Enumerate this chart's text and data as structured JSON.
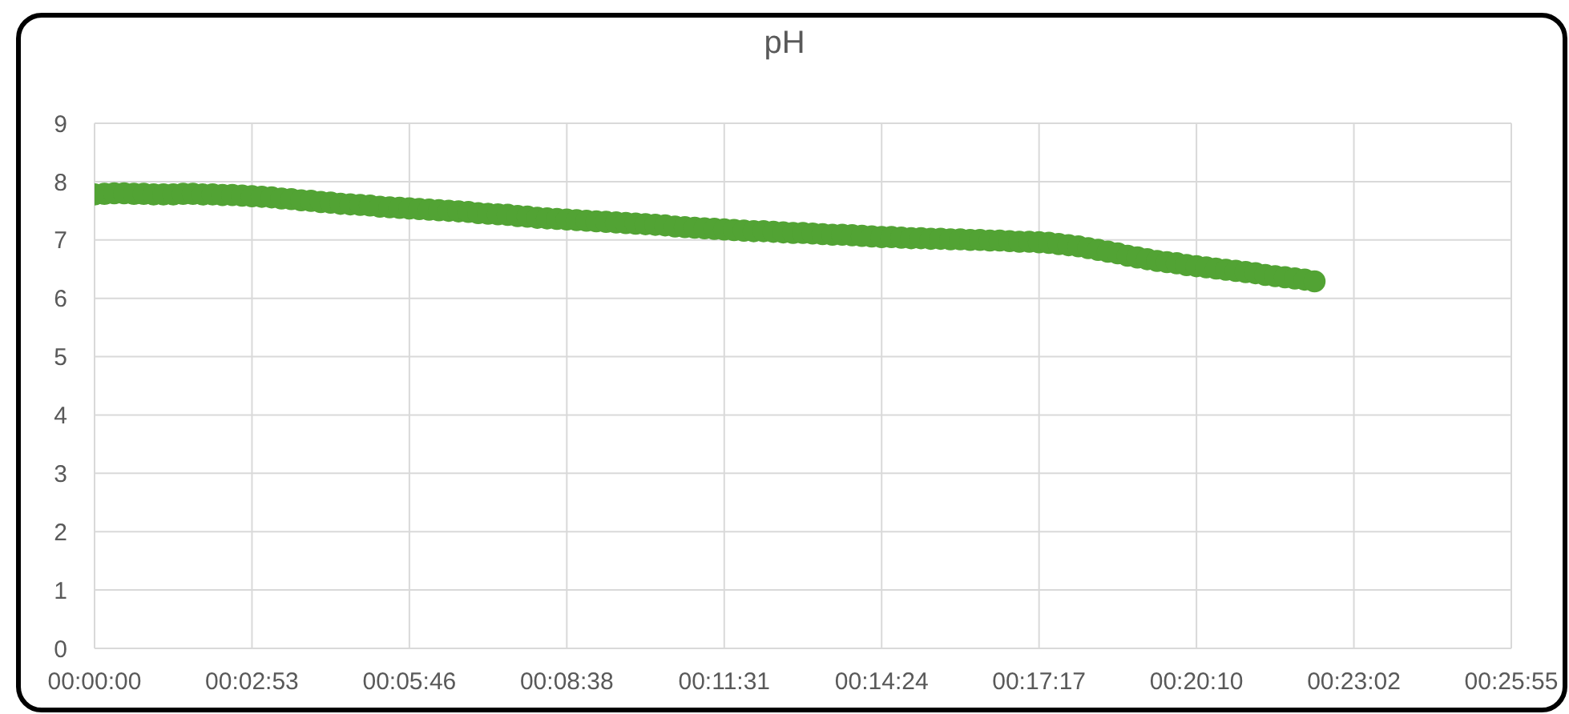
{
  "chart_data": {
    "type": "scatter",
    "title": "pH",
    "x": [
      0,
      0.003,
      0.006,
      0.009,
      0.012,
      0.015,
      0.018,
      0.021,
      0.024,
      0.027,
      0.03,
      0.033,
      0.036,
      0.039,
      0.042,
      0.045,
      0.048,
      0.051,
      0.054,
      0.057,
      0.06,
      0.063,
      0.066,
      0.069,
      0.072,
      0.075,
      0.078,
      0.081,
      0.084,
      0.087,
      0.09,
      0.093,
      0.096,
      0.099,
      0.102,
      0.105,
      0.108,
      0.111,
      0.114,
      0.117,
      0.12,
      0.123,
      0.126,
      0.129,
      0.132,
      0.135,
      0.138,
      0.141,
      0.144,
      0.147,
      0.15,
      0.153,
      0.156,
      0.159,
      0.162,
      0.165,
      0.168,
      0.171,
      0.174,
      0.177,
      0.18,
      0.183,
      0.186,
      0.189,
      0.192,
      0.195,
      0.198,
      0.201,
      0.204,
      0.207,
      0.21,
      0.213,
      0.216,
      0.219,
      0.222,
      0.225,
      0.228,
      0.231,
      0.234,
      0.237,
      0.24,
      0.243,
      0.246,
      0.249,
      0.252,
      0.255,
      0.258,
      0.261,
      0.264,
      0.267,
      0.27,
      0.273,
      0.276,
      0.279,
      0.282,
      0.285,
      0.288,
      0.291,
      0.294,
      0.297,
      0.3,
      0.303,
      0.306,
      0.309,
      0.312,
      0.315,
      0.318,
      0.321,
      0.324,
      0.327,
      0.33,
      0.333,
      0.336,
      0.339,
      0.342,
      0.345,
      0.348,
      0.351,
      0.354,
      0.357,
      0.36,
      0.363,
      0.366,
      0.369,
      0.372
    ],
    "values": [
      7.78,
      7.79,
      7.8,
      7.8,
      7.79,
      7.79,
      7.78,
      7.78,
      7.78,
      7.79,
      7.79,
      7.78,
      7.78,
      7.77,
      7.77,
      7.76,
      7.75,
      7.74,
      7.73,
      7.71,
      7.7,
      7.68,
      7.67,
      7.65,
      7.64,
      7.62,
      7.61,
      7.6,
      7.59,
      7.57,
      7.56,
      7.55,
      7.54,
      7.53,
      7.52,
      7.51,
      7.5,
      7.49,
      7.48,
      7.46,
      7.45,
      7.44,
      7.43,
      7.41,
      7.4,
      7.38,
      7.37,
      7.36,
      7.35,
      7.34,
      7.33,
      7.32,
      7.31,
      7.3,
      7.29,
      7.28,
      7.27,
      7.26,
      7.25,
      7.23,
      7.22,
      7.21,
      7.2,
      7.19,
      7.18,
      7.17,
      7.16,
      7.15,
      7.15,
      7.14,
      7.13,
      7.12,
      7.12,
      7.11,
      7.1,
      7.09,
      7.09,
      7.08,
      7.07,
      7.06,
      7.05,
      7.05,
      7.04,
      7.03,
      7.03,
      7.02,
      7.02,
      7.01,
      7.01,
      7,
      7,
      6.99,
      6.99,
      6.98,
      6.97,
      6.97,
      6.96,
      6.95,
      6.93,
      6.91,
      6.89,
      6.86,
      6.83,
      6.8,
      6.77,
      6.73,
      6.7,
      6.67,
      6.64,
      6.62,
      6.6,
      6.57,
      6.55,
      6.53,
      6.51,
      6.49,
      6.47,
      6.45,
      6.43,
      6.4,
      6.38,
      6.36,
      6.34,
      6.32,
      6.29
    ],
    "color": "#52a334",
    "marker": "circle",
    "grid": true,
    "xlim": [
      0,
      0.432
    ],
    "xticks": [
      {
        "value": 0,
        "label": "00:00:00"
      },
      {
        "value": 0.048,
        "label": "00:02:53"
      },
      {
        "value": 0.096,
        "label": "00:05:46"
      },
      {
        "value": 0.144,
        "label": "00:08:38"
      },
      {
        "value": 0.192,
        "label": "00:11:31"
      },
      {
        "value": 0.24,
        "label": "00:14:24"
      },
      {
        "value": 0.288,
        "label": "00:17:17"
      },
      {
        "value": 0.336,
        "label": "00:20:10"
      },
      {
        "value": 0.384,
        "label": "00:23:02"
      },
      {
        "value": 0.432,
        "label": "00:25:55"
      }
    ],
    "ylim": [
      0,
      9
    ],
    "yticks": [
      0,
      1,
      2,
      3,
      4,
      5,
      6,
      7,
      8,
      9
    ]
  }
}
